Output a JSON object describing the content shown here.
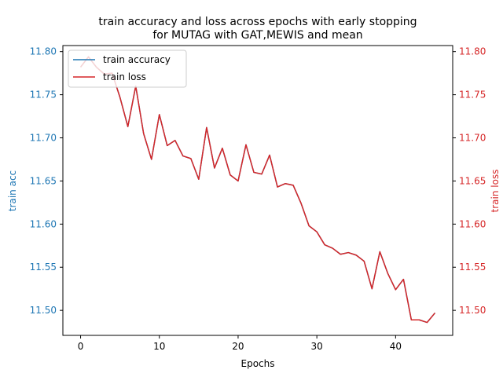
{
  "chart_data": {
    "type": "line",
    "title_line1": "train accuracy and loss across epochs with early stopping",
    "title_line2": "for MUTAG with GAT,MEWIS and mean",
    "xlabel": "Epochs",
    "ylabel_left": "train acc",
    "ylabel_right": "train loss",
    "xlim": [
      -2.25,
      47.25
    ],
    "ylim": [
      11.471,
      11.807
    ],
    "x_ticks": [
      0,
      10,
      20,
      30,
      40
    ],
    "y_ticks": [
      11.5,
      11.55,
      11.6,
      11.65,
      11.7,
      11.75,
      11.8
    ],
    "y_tick_labels": [
      "11.50",
      "11.55",
      "11.60",
      "11.65",
      "11.70",
      "11.75",
      "11.80"
    ],
    "left_axis_color": "#1f77b4",
    "right_axis_color": "#d62728",
    "legend_position": "upper left",
    "x": [
      0,
      1,
      2,
      3,
      4,
      5,
      6,
      7,
      8,
      9,
      10,
      11,
      12,
      13,
      14,
      15,
      16,
      17,
      18,
      19,
      20,
      21,
      22,
      23,
      24,
      25,
      26,
      27,
      28,
      29,
      30,
      31,
      32,
      33,
      34,
      35,
      36,
      37,
      38,
      39,
      40,
      41,
      42,
      43,
      44,
      45
    ],
    "series": [
      {
        "name": "train accuracy",
        "axis": "left",
        "color": "#1f77b4",
        "values": [
          11.782,
          11.794,
          11.782,
          11.774,
          11.775,
          11.747,
          11.713,
          11.76,
          11.705,
          11.675,
          11.727,
          11.691,
          11.697,
          11.679,
          11.676,
          11.652,
          11.712,
          11.665,
          11.688,
          11.657,
          11.65,
          11.692,
          11.66,
          11.658,
          11.68,
          11.643,
          11.647,
          11.645,
          11.624,
          11.598,
          11.591,
          11.576,
          11.572,
          11.565,
          11.567,
          11.564,
          11.557,
          11.525,
          11.568,
          11.543,
          11.524,
          11.536,
          11.489,
          11.489,
          11.486,
          11.497
        ]
      },
      {
        "name": "train loss",
        "axis": "right",
        "color": "#d62728",
        "values": [
          11.782,
          11.794,
          11.782,
          11.774,
          11.775,
          11.747,
          11.713,
          11.76,
          11.705,
          11.675,
          11.727,
          11.691,
          11.697,
          11.679,
          11.676,
          11.652,
          11.712,
          11.665,
          11.688,
          11.657,
          11.65,
          11.692,
          11.66,
          11.658,
          11.68,
          11.643,
          11.647,
          11.645,
          11.624,
          11.598,
          11.591,
          11.576,
          11.572,
          11.565,
          11.567,
          11.564,
          11.557,
          11.525,
          11.568,
          11.543,
          11.524,
          11.536,
          11.489,
          11.489,
          11.486,
          11.497
        ]
      }
    ]
  }
}
